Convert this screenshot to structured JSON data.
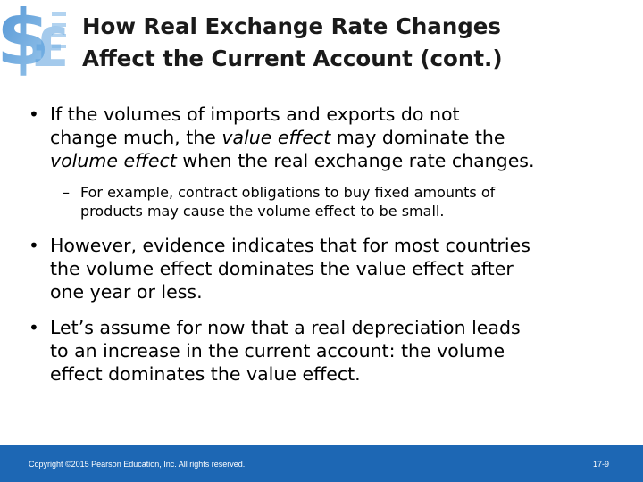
{
  "slide": {
    "title_lines": [
      "How Real Exchange Rate Changes",
      "Affect the Current Account (cont.)"
    ],
    "bullets": [
      {
        "lines": [
          {
            "parts": [
              "If the volumes of imports and exports do not"
            ]
          },
          {
            "parts": [
              "change much, the ",
              "value effect",
              " may dominate the"
            ]
          },
          {
            "parts": [
              "volume effect",
              " when the real exchange rate changes."
            ]
          }
        ],
        "sub": {
          "lines": [
            "For example, contract obligations to buy fixed amounts of",
            "products may cause the volume effect to be small."
          ]
        }
      },
      {
        "lines": [
          "However, evidence indicates that for most countries",
          "the volume effect dominates the value effect after",
          "one year or less."
        ]
      },
      {
        "lines": [
          "Let’s assume for now that a real depreciation leads",
          "to an increase in the current account: the volume",
          "effect dominates the value effect."
        ]
      }
    ]
  },
  "footer": {
    "copyright": "Copyright ©2015 Pearson Education, Inc. All rights reserved.",
    "page_number": "17-9"
  },
  "colors": {
    "footer_bg": "#1d67b4",
    "logo_accent": "#3a86d0"
  },
  "icons": {
    "logo": "currency-logo-icon"
  }
}
